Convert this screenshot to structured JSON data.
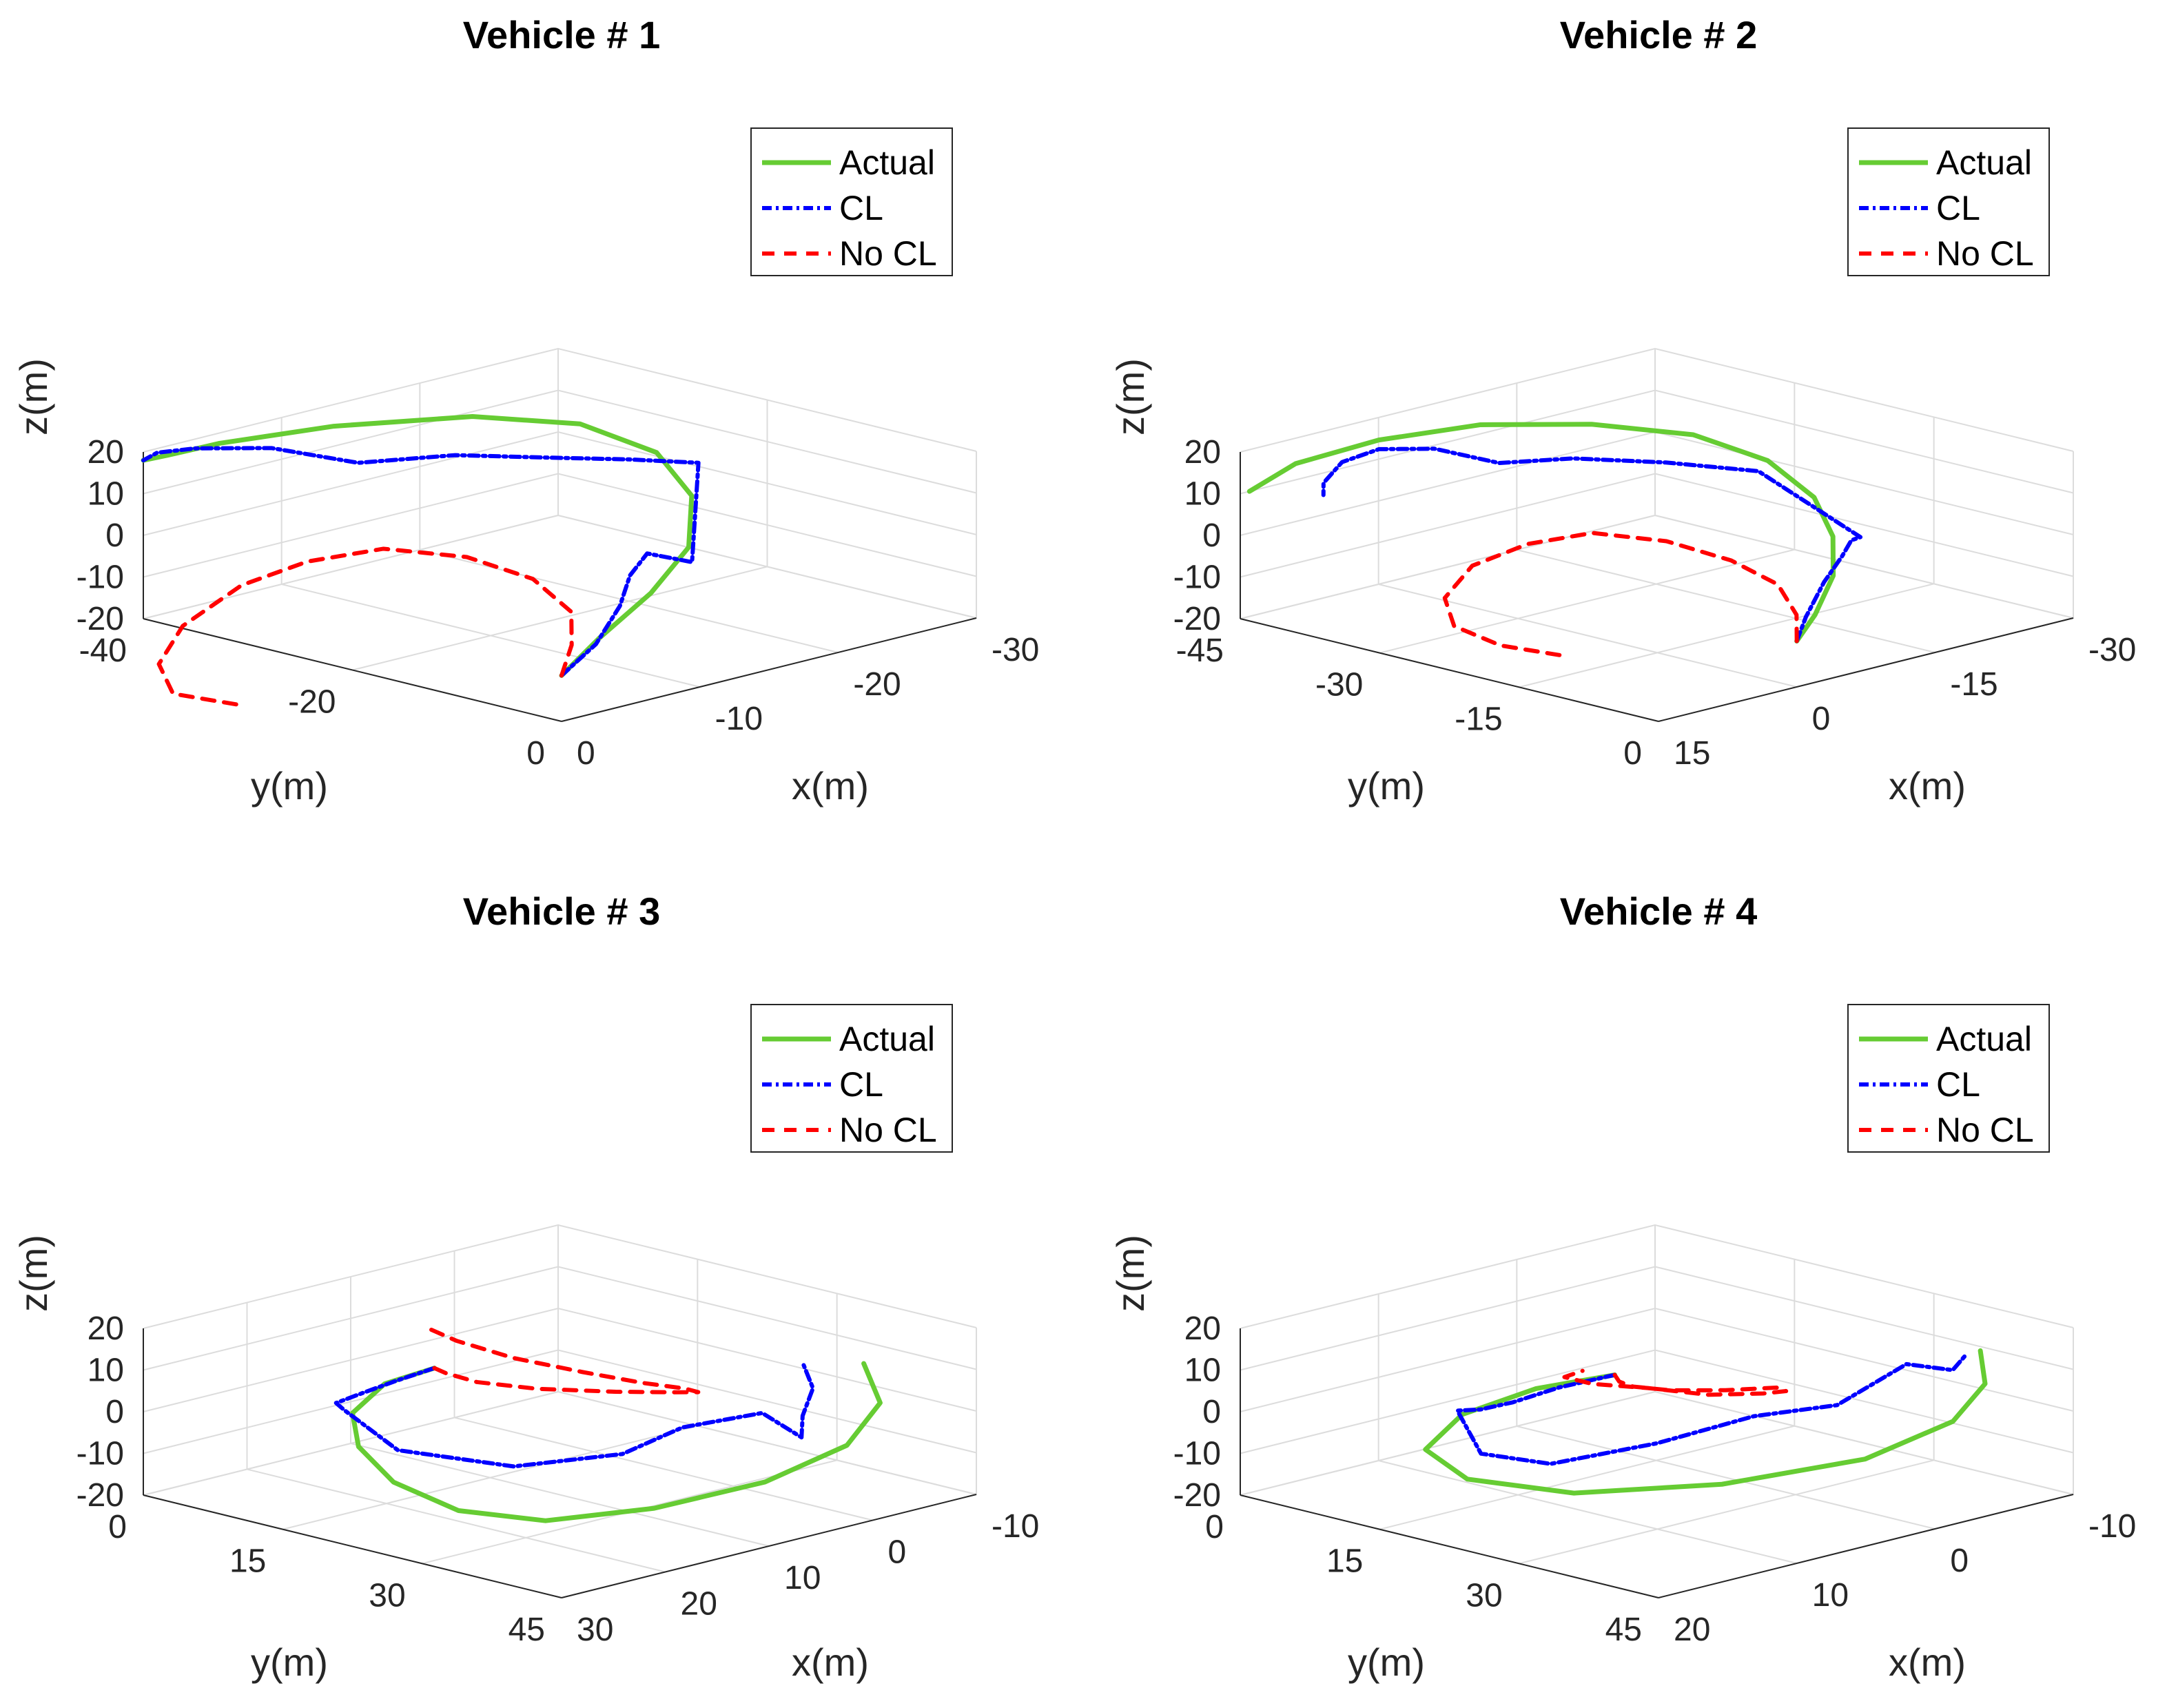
{
  "chart_data": [
    {
      "type": "line3d",
      "title": "Vehicle # 1",
      "xlabel": "x(m)",
      "ylabel": "y(m)",
      "zlabel": "z(m)",
      "xlim": [
        -30,
        0
      ],
      "ylim": [
        -40,
        0
      ],
      "zlim": [
        -20,
        20
      ],
      "xticks": [
        0,
        -10,
        -20,
        -30
      ],
      "yticks": [
        -40,
        -20,
        0
      ],
      "zticks": [
        -20,
        -10,
        0,
        10,
        20
      ],
      "legend": [
        "Actual",
        "CL",
        "No CL"
      ],
      "legend_position": "top-right",
      "series": [
        {
          "name": "Actual",
          "x": [
            0,
            -5,
            -11,
            -16,
            -20,
            -22,
            -21,
            -17,
            -10,
            -4,
            -1,
            0
          ],
          "y": [
            0,
            -3,
            -6,
            -9,
            -14,
            -20,
            -26,
            -31,
            -35,
            -38,
            -39,
            -40
          ],
          "z": [
            -9,
            -6,
            -2,
            3,
            9,
            14,
            18,
            20,
            21,
            20,
            19,
            18
          ]
        },
        {
          "name": "CL",
          "x": [
            0,
            -4,
            -8,
            -11,
            -13,
            -17,
            -22,
            -20,
            -18,
            -15,
            -11,
            -7,
            -3,
            -1,
            0
          ],
          "y": [
            0,
            -2,
            -5,
            -8,
            -9,
            -10,
            -16,
            -20,
            -25,
            -30,
            -34,
            -37,
            -39,
            -40,
            -40
          ],
          "z": [
            -9,
            -6,
            -2,
            1,
            4,
            -2,
            14,
            14,
            13,
            13,
            12,
            17,
            19,
            19,
            18
          ]
        },
        {
          "name": "No CL",
          "x": [
            0,
            -3,
            -6,
            -7,
            -6,
            -3,
            1,
            5,
            10,
            14,
            16,
            14
          ],
          "y": [
            0,
            -3,
            -7,
            -12,
            -17,
            -21,
            -23,
            -24,
            -23,
            -20,
            -16,
            -12
          ],
          "z": [
            -9,
            -6,
            -3,
            1,
            4,
            6,
            5,
            2,
            -3,
            -7,
            -10,
            -12
          ]
        }
      ]
    },
    {
      "type": "line3d",
      "title": "Vehicle # 2",
      "xlabel": "x(m)",
      "ylabel": "y(m)",
      "zlabel": "z(m)",
      "xlim": [
        -30,
        15
      ],
      "ylim": [
        -45,
        0
      ],
      "zlim": [
        -20,
        20
      ],
      "xticks": [
        15,
        0,
        -15,
        -30
      ],
      "yticks": [
        -45,
        -30,
        -15,
        0
      ],
      "zticks": [
        -20,
        -10,
        0,
        10,
        20
      ],
      "legend": [
        "Actual",
        "CL",
        "No CL"
      ],
      "legend_position": "top-right",
      "series": [
        {
          "name": "Actual",
          "x": [
            0,
            -4,
            -9,
            -13,
            -16,
            -17,
            -15,
            -10,
            -3,
            4,
            10,
            14
          ],
          "y": [
            0,
            -2,
            -5,
            -9,
            -14,
            -20,
            -26,
            -32,
            -37,
            -41,
            -44,
            -45
          ],
          "z": [
            -9,
            -6,
            -1,
            4,
            9,
            14,
            18,
            20,
            21,
            19,
            15,
            10
          ]
        },
        {
          "name": "CL",
          "x": [
            0,
            -3,
            -8,
            -12,
            -15,
            -18,
            -16,
            -12,
            -7,
            -2,
            2,
            6,
            9,
            10,
            9
          ],
          "y": [
            0,
            -2,
            -5,
            -7,
            -9,
            -11,
            -20,
            -26,
            -31,
            -34,
            -37,
            -39,
            -40,
            -41,
            -42
          ],
          "z": [
            -9,
            -6,
            -2,
            1,
            2,
            0,
            12,
            13,
            14,
            14,
            18,
            19,
            17,
            12,
            8
          ]
        },
        {
          "name": "No CL",
          "x": [
            0,
            -3,
            -5,
            -5,
            -3,
            1,
            6,
            11,
            15,
            17,
            16,
            13
          ],
          "y": [
            0,
            -3,
            -7,
            -12,
            -17,
            -21,
            -23,
            -24,
            -23,
            -20,
            -16,
            -12
          ],
          "z": [
            -9,
            -6,
            -2,
            1,
            4,
            6,
            5,
            2,
            -3,
            -7,
            -10,
            -12
          ]
        }
      ]
    },
    {
      "type": "line3d",
      "title": "Vehicle # 3",
      "xlabel": "x(m)",
      "ylabel": "y(m)",
      "zlabel": "z(m)",
      "xlim": [
        -10,
        30
      ],
      "ylim": [
        0,
        45
      ],
      "zlim": [
        -20,
        20
      ],
      "xticks": [
        30,
        20,
        10,
        0,
        -10
      ],
      "yticks": [
        0,
        15,
        30,
        45
      ],
      "zticks": [
        -20,
        -10,
        0,
        10,
        20
      ],
      "legend": [
        "Actual",
        "CL",
        "No CL"
      ],
      "legend_position": "top-right",
      "series": [
        {
          "name": "Actual",
          "x": [
            10,
            13,
            17,
            20,
            22,
            22,
            19,
            13,
            5,
            -2,
            -7,
            -9
          ],
          "y": [
            9,
            7,
            8,
            12,
            18,
            25,
            31,
            36,
            39,
            40,
            38,
            34
          ],
          "z": [
            3,
            0,
            -4,
            -8,
            -12,
            -15,
            -16,
            -14,
            -11,
            -6,
            0,
            6
          ]
        },
        {
          "name": "CL",
          "x": [
            10,
            12,
            13,
            15,
            16,
            18,
            14,
            8,
            4,
            -1,
            -3,
            -4,
            -5,
            -5
          ],
          "y": [
            9,
            7,
            5,
            4,
            6,
            14,
            22,
            27,
            29,
            32,
            34,
            33,
            33,
            32
          ],
          "z": [
            3,
            0,
            -3,
            -5,
            -5,
            -9,
            -11,
            -9,
            -4,
            -2,
            -8,
            -4,
            2,
            7
          ]
        },
        {
          "name": "No CL",
          "x": [
            10,
            8,
            5,
            1,
            -3,
            -4,
            -2,
            2,
            7,
            11,
            14,
            15,
            14,
            12
          ],
          "y": [
            9,
            8,
            8,
            10,
            14,
            19,
            24,
            27,
            28,
            26,
            22,
            17,
            13,
            11
          ],
          "z": [
            3,
            0,
            -4,
            -7,
            -8,
            -6,
            -2,
            3,
            8,
            12,
            15,
            17,
            17,
            15
          ]
        }
      ]
    },
    {
      "type": "line3d",
      "title": "Vehicle # 4",
      "xlabel": "x(m)",
      "ylabel": "y(m)",
      "zlabel": "z(m)",
      "xlim": [
        -10,
        20
      ],
      "ylim": [
        0,
        45
      ],
      "zlim": [
        -20,
        20
      ],
      "xticks": [
        20,
        10,
        0,
        -10
      ],
      "yticks": [
        0,
        15,
        30,
        45
      ],
      "zticks": [
        -20,
        -10,
        0,
        10,
        20
      ],
      "legend": [
        "Actual",
        "CL",
        "No CL"
      ],
      "legend_position": "top-right",
      "series": [
        {
          "name": "Actual",
          "x": [
            3,
            6,
            10,
            14,
            15,
            12,
            6,
            -1,
            -6,
            -9,
            -10
          ],
          "y": [
            15,
            11,
            9,
            11,
            17,
            24,
            31,
            36,
            38,
            37,
            35
          ],
          "z": [
            3,
            0,
            -4,
            -8,
            -11,
            -13,
            -12,
            -9,
            -3,
            3,
            9
          ]
        },
        {
          "name": "CL",
          "x": [
            3,
            5,
            7,
            8,
            9,
            12,
            11,
            6,
            1,
            -3,
            -6,
            -8,
            -9
          ],
          "y": [
            15,
            12,
            10,
            8,
            7,
            14,
            20,
            24,
            27,
            30,
            33,
            35,
            35
          ],
          "z": [
            3,
            0,
            -3,
            -5,
            -5,
            -9,
            -9,
            -6,
            -2,
            -1,
            8,
            6,
            9
          ]
        },
        {
          "name": "No CL",
          "x": [
            3,
            2,
            1,
            -1,
            -3,
            -4,
            -2,
            1,
            5,
            8,
            10,
            10,
            8,
            6
          ],
          "y": [
            15,
            14,
            14,
            15,
            18,
            22,
            26,
            28,
            28,
            26,
            23,
            20,
            18,
            16
          ],
          "z": [
            3,
            0,
            -2,
            -4,
            -4,
            -2,
            1,
            4,
            7,
            10,
            11,
            11,
            9,
            7
          ]
        }
      ]
    }
  ],
  "colors": {
    "Actual": "#66cc33",
    "CL": "#0000ff",
    "No CL": "#ff0000"
  }
}
